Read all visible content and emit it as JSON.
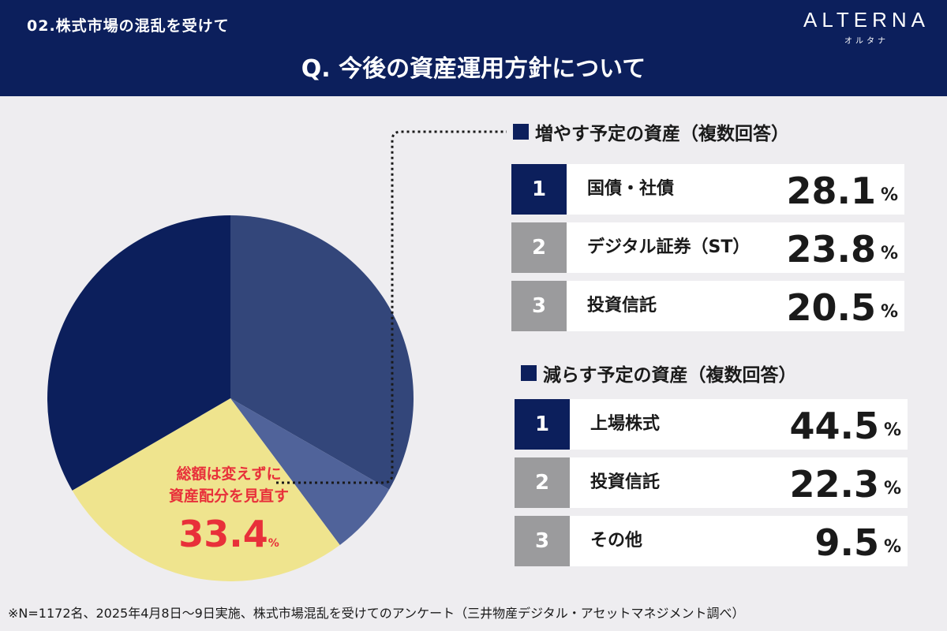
{
  "header": {
    "section_label": "02.株式市場の混乱を受けて",
    "question": "Q. 今後の資産運用方針について",
    "logo": "ALTERNA",
    "logo_sub": "オルタナ"
  },
  "colors": {
    "navy": "#0c1f5c",
    "gray": "#9b9b9d",
    "red": "#e8303a",
    "yellow": "#efe48e"
  },
  "chart_data": {
    "type": "pie",
    "title": "今後の資産運用方針について",
    "slices": [
      {
        "value": 33.3,
        "color": "#33467a"
      },
      {
        "value": 6.5,
        "color": "#50639a"
      },
      {
        "value": 26.8,
        "color": "#efe48e"
      },
      {
        "value": 33.4,
        "color": "#0c1f5c"
      }
    ],
    "highlight": {
      "line1": "総額は変えずに",
      "line2": "資産配分を見直す",
      "value": "33.4",
      "unit": "%"
    }
  },
  "increase": {
    "title": "増やす予定の資産（複数回答）",
    "items": [
      {
        "rank": "1",
        "label": "国債・社債",
        "value": "28.1",
        "unit": "%"
      },
      {
        "rank": "2",
        "label": "デジタル証券（ST）",
        "value": "23.8",
        "unit": "%"
      },
      {
        "rank": "3",
        "label": "投資信託",
        "value": "20.5",
        "unit": "%"
      }
    ]
  },
  "decrease": {
    "title": "減らす予定の資産（複数回答）",
    "items": [
      {
        "rank": "1",
        "label": "上場株式",
        "value": "44.5",
        "unit": "%"
      },
      {
        "rank": "2",
        "label": "投資信託",
        "value": "22.3",
        "unit": "%"
      },
      {
        "rank": "3",
        "label": "その他",
        "value": "9.5",
        "unit": "%"
      }
    ]
  },
  "footnote": "※N=1172名、2025年4月8日〜9日実施、株式市場混乱を受けてのアンケート（三井物産デジタル・アセットマネジメント調べ）"
}
